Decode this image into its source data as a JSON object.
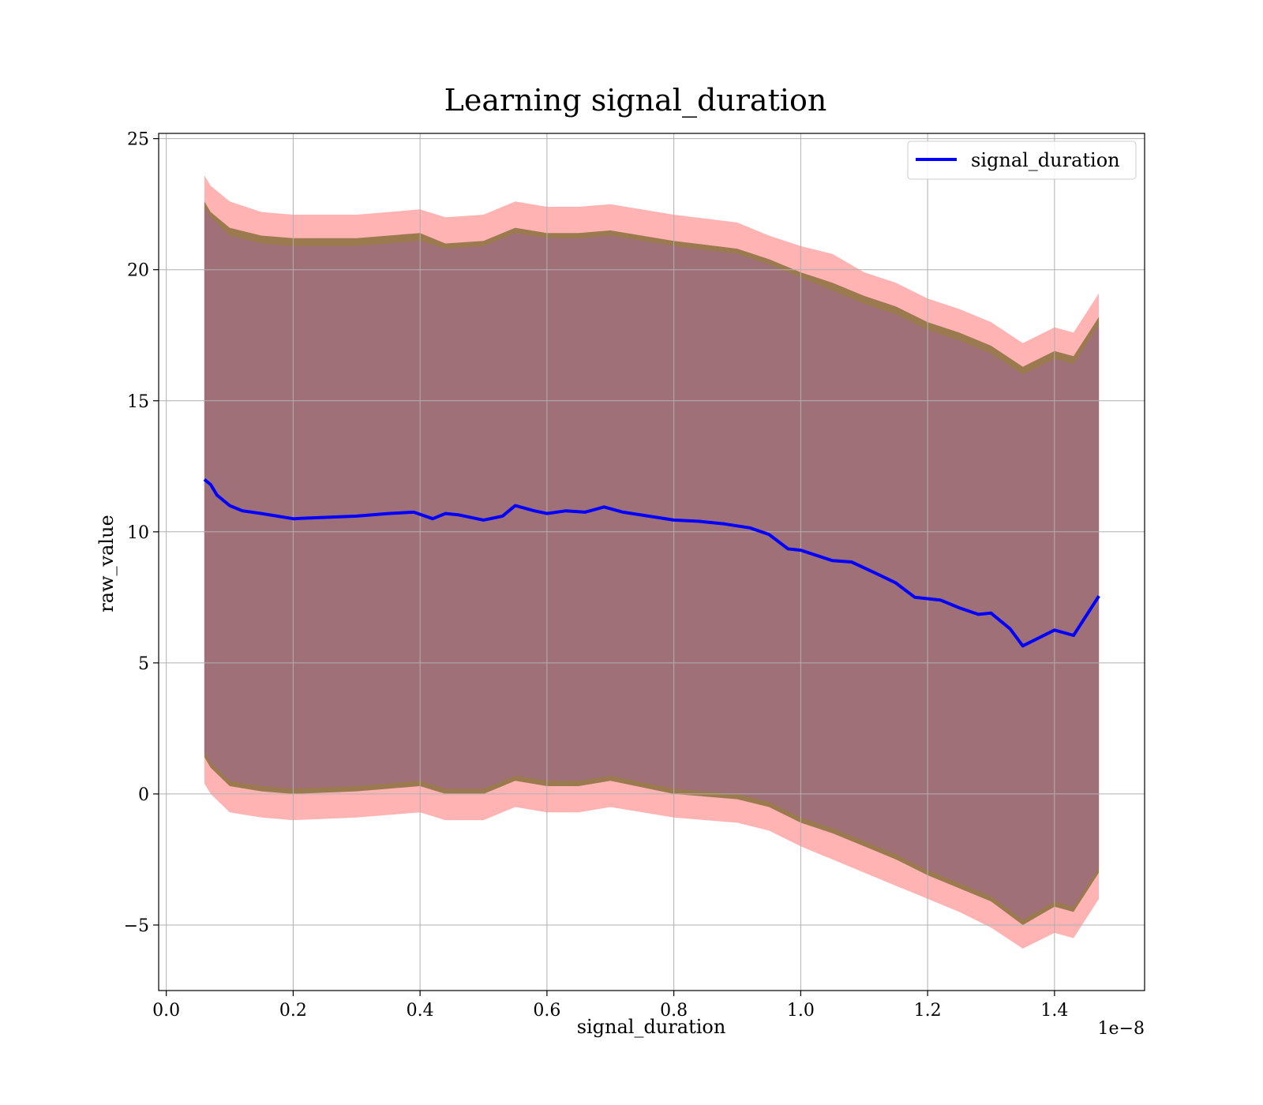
{
  "chart_data": {
    "type": "line",
    "title": "Learning signal_duration",
    "xlabel": "signal_duration",
    "ylabel": "raw_value",
    "x_offset_label": "1e−8",
    "xlim": [
      -1.2e-10,
      1.542e-08
    ],
    "ylim": [
      -7.5,
      25.2
    ],
    "x_ticks": [
      0,
      2e-09,
      4e-09,
      6e-09,
      8e-09,
      1e-08,
      1.2e-08,
      1.4e-08
    ],
    "x_tick_labels": [
      "0.0",
      "0.2",
      "0.4",
      "0.6",
      "0.8",
      "1.0",
      "1.2",
      "1.4"
    ],
    "y_ticks": [
      -5,
      0,
      5,
      10,
      15,
      20,
      25
    ],
    "y_tick_labels": [
      "−5",
      "0",
      "5",
      "10",
      "15",
      "20",
      "25"
    ],
    "grid": true,
    "legend_position": "top-right",
    "series": [
      {
        "name": "signal_duration",
        "color": "#0000ff",
        "x": [
          6e-10,
          7e-10,
          8e-10,
          9e-10,
          1e-09,
          1.2e-09,
          1.5e-09,
          2e-09,
          2.5e-09,
          3e-09,
          3.5e-09,
          3.9e-09,
          4.2e-09,
          4.4e-09,
          4.6e-09,
          5e-09,
          5.3e-09,
          5.5e-09,
          5.8e-09,
          6e-09,
          6.3e-09,
          6.6e-09,
          6.9e-09,
          7.2e-09,
          7.6e-09,
          8e-09,
          8.4e-09,
          8.8e-09,
          9.2e-09,
          9.5e-09,
          9.8e-09,
          1e-08,
          1.05e-08,
          1.08e-08,
          1.12e-08,
          1.15e-08,
          1.18e-08,
          1.22e-08,
          1.25e-08,
          1.28e-08,
          1.3e-08,
          1.33e-08,
          1.35e-08,
          1.4e-08,
          1.43e-08,
          1.47e-08
        ],
        "y": [
          12.0,
          11.8,
          11.4,
          11.2,
          11.0,
          10.8,
          10.7,
          10.5,
          10.55,
          10.6,
          10.7,
          10.75,
          10.5,
          10.7,
          10.65,
          10.45,
          10.6,
          11.0,
          10.8,
          10.7,
          10.8,
          10.75,
          10.95,
          10.75,
          10.6,
          10.45,
          10.4,
          10.3,
          10.15,
          9.9,
          9.35,
          9.3,
          8.9,
          8.85,
          8.4,
          8.05,
          7.5,
          7.4,
          7.1,
          6.85,
          6.9,
          6.3,
          5.65,
          6.25,
          6.05,
          7.55
        ]
      }
    ],
    "bands": [
      {
        "color": "#ff9999",
        "x": [
          6e-10,
          7e-10,
          1e-09,
          1.5e-09,
          2e-09,
          3e-09,
          4e-09,
          4.4e-09,
          5e-09,
          5.5e-09,
          6e-09,
          6.5e-09,
          7e-09,
          8e-09,
          9e-09,
          9.5e-09,
          1e-08,
          1.05e-08,
          1.1e-08,
          1.15e-08,
          1.2e-08,
          1.25e-08,
          1.3e-08,
          1.35e-08,
          1.4e-08,
          1.43e-08,
          1.47e-08
        ],
        "upper": [
          23.6,
          23.2,
          22.6,
          22.2,
          22.1,
          22.1,
          22.3,
          22.0,
          22.1,
          22.6,
          22.4,
          22.4,
          22.5,
          22.1,
          21.8,
          21.3,
          20.9,
          20.6,
          19.9,
          19.5,
          18.9,
          18.5,
          18.0,
          17.2,
          17.8,
          17.6,
          19.1
        ],
        "lower": [
          0.4,
          0.0,
          -0.7,
          -0.9,
          -1.0,
          -0.9,
          -0.7,
          -1.0,
          -1.0,
          -0.5,
          -0.7,
          -0.7,
          -0.5,
          -0.9,
          -1.1,
          -1.4,
          -2.0,
          -2.5,
          -3.0,
          -3.5,
          -4.0,
          -4.5,
          -5.1,
          -5.9,
          -5.3,
          -5.5,
          -4.0
        ]
      },
      {
        "color": "#9c7a50",
        "x": [
          6e-10,
          7e-10,
          1e-09,
          1.5e-09,
          2e-09,
          3e-09,
          4e-09,
          4.4e-09,
          5e-09,
          5.5e-09,
          6e-09,
          6.5e-09,
          7e-09,
          8e-09,
          9e-09,
          9.5e-09,
          1e-08,
          1.05e-08,
          1.1e-08,
          1.15e-08,
          1.2e-08,
          1.25e-08,
          1.3e-08,
          1.35e-08,
          1.4e-08,
          1.43e-08,
          1.47e-08
        ],
        "upper": [
          22.6,
          22.2,
          21.6,
          21.3,
          21.2,
          21.2,
          21.4,
          21.0,
          21.1,
          21.6,
          21.4,
          21.4,
          21.5,
          21.1,
          20.8,
          20.4,
          19.9,
          19.5,
          19.0,
          18.6,
          18.0,
          17.6,
          17.1,
          16.3,
          16.9,
          16.7,
          18.2
        ],
        "lower": [
          1.4,
          1.0,
          0.3,
          0.1,
          0.0,
          0.1,
          0.3,
          0.0,
          0.0,
          0.5,
          0.3,
          0.3,
          0.5,
          0.0,
          -0.2,
          -0.5,
          -1.1,
          -1.5,
          -2.0,
          -2.5,
          -3.1,
          -3.6,
          -4.1,
          -5.0,
          -4.3,
          -4.5,
          -3.0
        ]
      },
      {
        "color": "#a07078",
        "x": [
          6e-10,
          7e-10,
          1e-09,
          1.5e-09,
          2e-09,
          3e-09,
          4e-09,
          4.4e-09,
          5e-09,
          5.5e-09,
          6e-09,
          6.5e-09,
          7e-09,
          8e-09,
          9e-09,
          9.5e-09,
          1e-08,
          1.05e-08,
          1.1e-08,
          1.15e-08,
          1.2e-08,
          1.25e-08,
          1.3e-08,
          1.35e-08,
          1.4e-08,
          1.43e-08,
          1.47e-08
        ],
        "upper": [
          22.4,
          22.0,
          21.3,
          21.0,
          20.9,
          20.9,
          21.1,
          20.8,
          20.9,
          21.4,
          21.2,
          21.2,
          21.3,
          20.9,
          20.6,
          20.2,
          19.7,
          19.2,
          18.7,
          18.3,
          17.7,
          17.3,
          16.8,
          16.0,
          16.6,
          16.4,
          17.9
        ],
        "lower": [
          1.6,
          1.2,
          0.5,
          0.3,
          0.2,
          0.3,
          0.5,
          0.2,
          0.2,
          0.7,
          0.5,
          0.5,
          0.7,
          0.2,
          0.0,
          -0.3,
          -0.9,
          -1.3,
          -1.8,
          -2.3,
          -2.9,
          -3.4,
          -3.9,
          -4.8,
          -4.1,
          -4.3,
          -2.8
        ]
      }
    ]
  }
}
